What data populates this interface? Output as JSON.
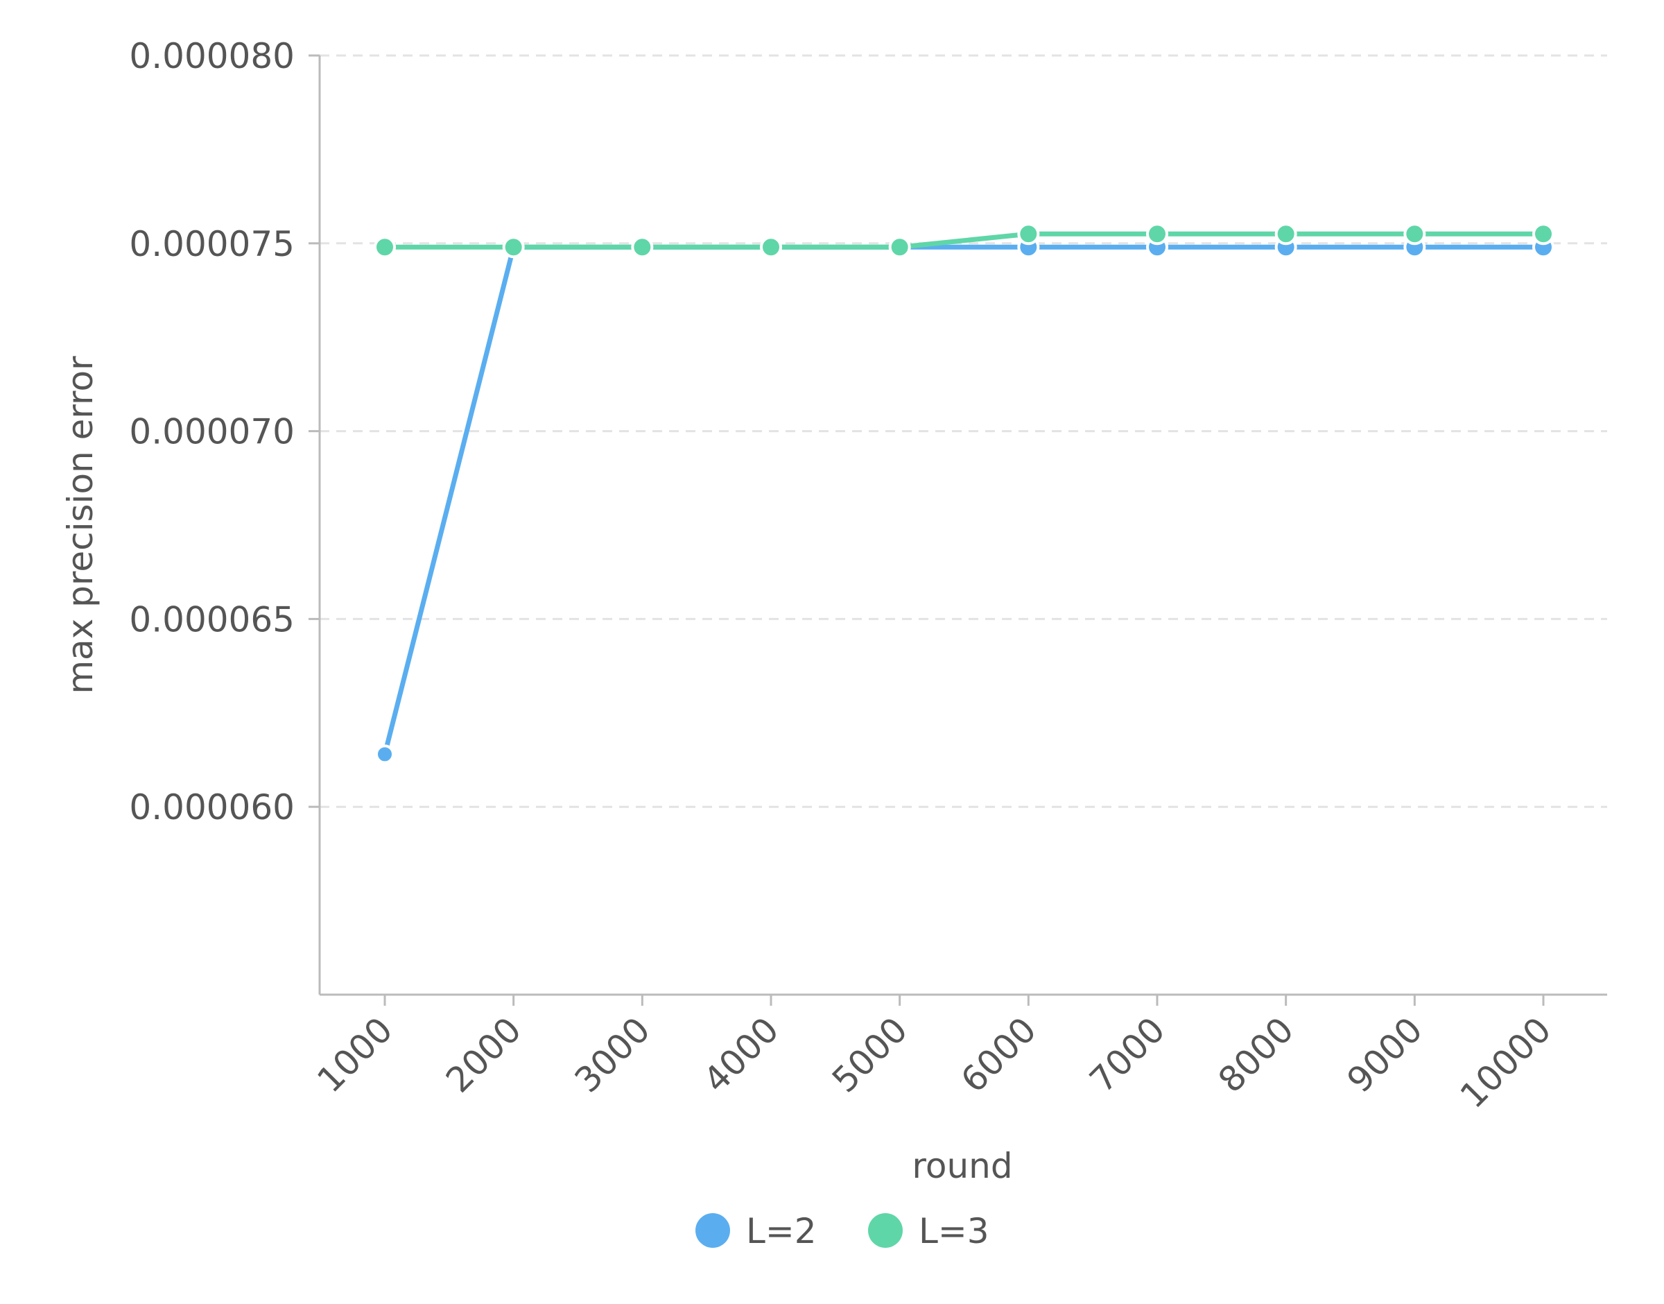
{
  "chart_data": {
    "type": "line",
    "xlabel": "round",
    "ylabel": "max precision error",
    "x": [
      1000,
      2000,
      3000,
      4000,
      5000,
      6000,
      7000,
      8000,
      9000,
      10000
    ],
    "x_tick_labels": [
      "1000",
      "2000",
      "3000",
      "4000",
      "5000",
      "6000",
      "7000",
      "8000",
      "9000",
      "10000"
    ],
    "y_ticks": [
      6e-05,
      6.5e-05,
      7e-05,
      7.5e-05,
      8e-05
    ],
    "y_tick_labels": [
      "0.000060",
      "0.000065",
      "0.000070",
      "0.000075",
      "0.000080"
    ],
    "ylim": [
      5.5e-05,
      8e-05
    ],
    "grid": "horizontal-dashed",
    "legend_position": "bottom-center",
    "series": [
      {
        "name": "L=2",
        "color": "#5aaef0",
        "values": [
          6.14e-05,
          7.49e-05,
          7.49e-05,
          7.49e-05,
          7.49e-05,
          7.49e-05,
          7.49e-05,
          7.49e-05,
          7.49e-05,
          7.49e-05
        ]
      },
      {
        "name": "L=3",
        "color": "#5fd6a8",
        "values": [
          7.49e-05,
          7.49e-05,
          7.49e-05,
          7.49e-05,
          7.49e-05,
          7.525e-05,
          7.525e-05,
          7.525e-05,
          7.525e-05,
          7.525e-05
        ]
      }
    ]
  }
}
